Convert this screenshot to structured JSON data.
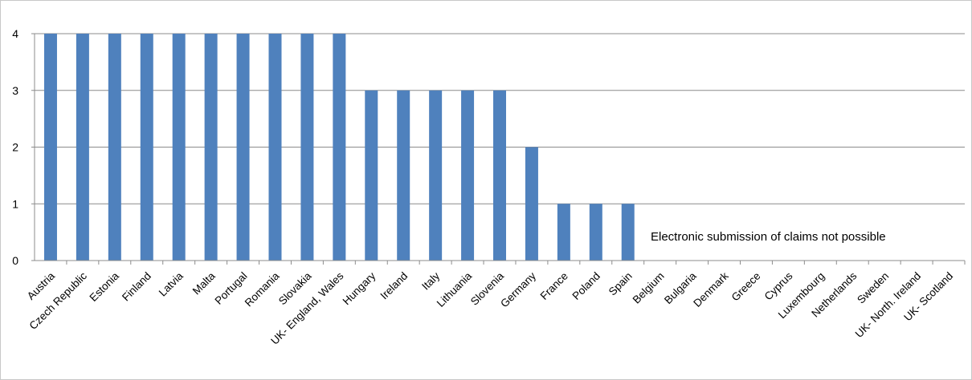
{
  "chart_data": {
    "type": "bar",
    "categories": [
      "Austria",
      "Czech Republic",
      "Estonia",
      "Finland",
      "Latvia",
      "Malta",
      "Portugal",
      "Romania",
      "Slovakia",
      "UK- England, Wales",
      "Hungary",
      "Ireland",
      "Italy",
      "Lithuania",
      "Slovenia",
      "Germany",
      "France",
      "Poland",
      "Spain",
      "Belgium",
      "Bulgaria",
      "Denmark",
      "Greece",
      "Cyprus",
      "Luxembourg",
      "Netherlands",
      "Sweden",
      "UK- North. Ireland",
      "UK- Scotland"
    ],
    "values": [
      4,
      4,
      4,
      4,
      4,
      4,
      4,
      4,
      4,
      4,
      3,
      3,
      3,
      3,
      3,
      2,
      1,
      1,
      1,
      0,
      0,
      0,
      0,
      0,
      0,
      0,
      0,
      0,
      0
    ],
    "yticks": [
      "0",
      "1",
      "2",
      "3",
      "4"
    ],
    "ylim": [
      0,
      4
    ],
    "grid": true,
    "legend": "none",
    "bar_color": "#4F81BD",
    "annotation": "Electronic submission of claims not possible"
  }
}
